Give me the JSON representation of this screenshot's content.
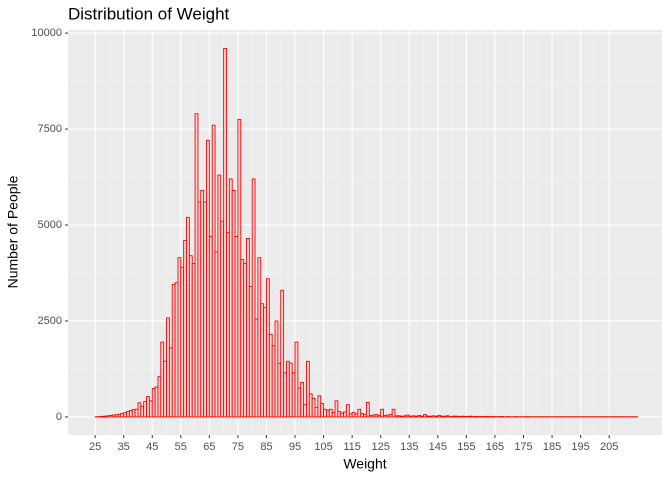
{
  "chart_data": {
    "type": "histogram",
    "title": "Distribution of Weight",
    "x_label": "Weight",
    "y_label": "Number of People",
    "bins": [
      25,
      26,
      27,
      28,
      29,
      30,
      31,
      32,
      33,
      34,
      35,
      36,
      37,
      38,
      39,
      40,
      41,
      42,
      43,
      44,
      45,
      46,
      47,
      48,
      49,
      50,
      51,
      52,
      53,
      54,
      55,
      56,
      57,
      58,
      59,
      60,
      61,
      62,
      63,
      64,
      65,
      66,
      67,
      68,
      69,
      70,
      71,
      72,
      73,
      74,
      75,
      76,
      77,
      78,
      79,
      80,
      81,
      82,
      83,
      84,
      85,
      86,
      87,
      88,
      89,
      90,
      91,
      92,
      93,
      94,
      95,
      96,
      97,
      98,
      99,
      100,
      101,
      102,
      103,
      104,
      105,
      106,
      107,
      108,
      109,
      110,
      111,
      112,
      113,
      114,
      115,
      116,
      117,
      118,
      119,
      120,
      121,
      122,
      123,
      124,
      125,
      126,
      127,
      128,
      129,
      130,
      131,
      132,
      133,
      134,
      135,
      136,
      137,
      138,
      139,
      140,
      141,
      142,
      143,
      144,
      145,
      146,
      147,
      148,
      149,
      150,
      151,
      152,
      153,
      154,
      155,
      156,
      157,
      158,
      159,
      160,
      161,
      162,
      163,
      164,
      165,
      166,
      167,
      168,
      169,
      170,
      171,
      172,
      173,
      174,
      175,
      176,
      177,
      178,
      179,
      180,
      181,
      182,
      183,
      184,
      185,
      186,
      187,
      188,
      189,
      190,
      191,
      192,
      193,
      194,
      195,
      196,
      197,
      198,
      199,
      200,
      201,
      202,
      203,
      204,
      205,
      206,
      207,
      208,
      209,
      210,
      211,
      212,
      213,
      214,
      215
    ],
    "values": [
      5,
      10,
      15,
      20,
      30,
      40,
      50,
      60,
      70,
      90,
      110,
      140,
      170,
      190,
      200,
      370,
      280,
      400,
      530,
      420,
      740,
      780,
      1050,
      1950,
      1450,
      2580,
      1800,
      3450,
      3500,
      4150,
      3900,
      4600,
      5200,
      4200,
      4000,
      7900,
      5600,
      5900,
      5600,
      7200,
      4700,
      7600,
      4300,
      6300,
      5100,
      9600,
      4800,
      6200,
      5900,
      4700,
      7750,
      4100,
      4000,
      4650,
      3400,
      6200,
      2550,
      4150,
      2950,
      2850,
      3600,
      2150,
      1850,
      2500,
      1400,
      3300,
      1150,
      1450,
      1400,
      1150,
      1950,
      750,
      900,
      320,
      1450,
      600,
      480,
      250,
      550,
      350,
      200,
      180,
      200,
      120,
      420,
      140,
      100,
      130,
      320,
      80,
      120,
      80,
      200,
      90,
      70,
      380,
      40,
      50,
      60,
      40,
      200,
      40,
      50,
      60,
      200,
      30,
      30,
      20,
      30,
      50,
      20,
      30,
      20,
      40,
      20,
      60,
      20,
      20,
      30,
      20,
      40,
      20,
      20,
      30,
      10,
      20,
      20,
      10,
      20,
      15,
      10,
      20,
      10,
      15,
      10,
      10,
      10,
      15,
      10,
      10,
      5,
      10,
      10,
      5,
      10,
      5,
      5,
      10,
      5,
      5,
      5,
      10,
      5,
      5,
      5,
      5,
      5,
      5,
      5,
      5,
      5,
      5,
      5,
      5,
      5,
      5,
      5,
      5,
      5,
      5,
      5,
      5,
      5,
      5,
      5,
      5,
      5,
      5,
      5,
      5,
      5,
      5,
      5,
      5,
      5,
      5,
      5,
      5,
      5,
      5
    ],
    "color": "#ff0000",
    "fill": "#ffd6d6",
    "xlim": [
      15.5,
      223.5
    ],
    "ylim": [
      -470,
      10080
    ],
    "xticks": [
      25,
      35,
      45,
      55,
      65,
      75,
      85,
      95,
      105,
      115,
      125,
      135,
      145,
      155,
      165,
      175,
      185,
      195,
      205
    ],
    "yticks": [
      0,
      2500,
      5000,
      7500,
      10000
    ],
    "grid": true
  }
}
